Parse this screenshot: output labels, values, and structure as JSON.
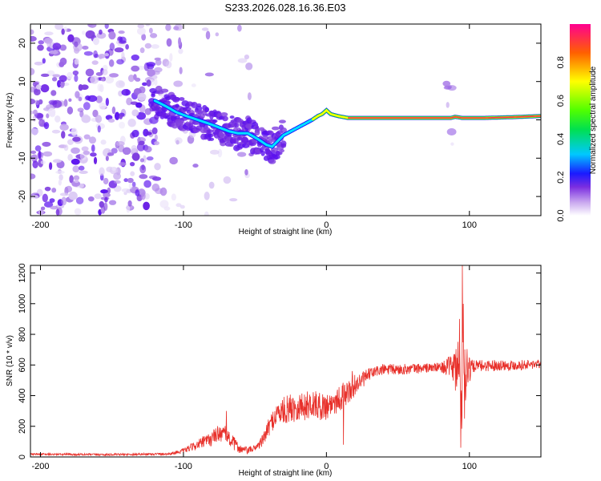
{
  "title": "S233.2026.028.16.36.E03",
  "chart_data": [
    {
      "type": "heatmap",
      "name": "spectrogram",
      "xlabel": "Height of straight line (km)",
      "ylabel": "Frequency (Hz)",
      "xlim": [
        -207,
        150
      ],
      "ylim": [
        -25,
        25
      ],
      "xticks": [
        "-200",
        "-100",
        "0",
        "100"
      ],
      "xtick_values": [
        -200,
        -100,
        0,
        100
      ],
      "yticks": [
        "-20",
        "-10",
        "0",
        "10",
        "20"
      ],
      "ytick_values": [
        -20,
        -10,
        0,
        10,
        20
      ],
      "ridge": {
        "x": [
          -120,
          -112,
          -105,
          -98,
          -90,
          -82,
          -75,
          -68,
          -62,
          -55,
          -48,
          -42,
          -38,
          -34,
          -30,
          -25,
          -20,
          -15,
          -10,
          -6,
          -3,
          0,
          3,
          8,
          15,
          25,
          40,
          60,
          80,
          87,
          90,
          95,
          110,
          130,
          150
        ],
        "y": [
          5,
          3.5,
          2,
          1,
          0,
          -1,
          -2,
          -3,
          -3.5,
          -3.5,
          -5,
          -6.5,
          -7,
          -5.5,
          -4,
          -3,
          -2,
          -1,
          0,
          1,
          1.5,
          2.5,
          1.5,
          1,
          0.5,
          0.5,
          0.5,
          0.5,
          0.5,
          0.5,
          0.8,
          0.5,
          0.5,
          0.7,
          1.0
        ]
      },
      "colorbar": {
        "label": "Normalized spectral amplitude",
        "ticks": [
          "0.0",
          "0.2",
          "0.4",
          "0.6",
          "0.8"
        ],
        "tick_values": [
          0.0,
          0.2,
          0.4,
          0.6,
          0.8
        ],
        "range": [
          0,
          1
        ]
      }
    },
    {
      "type": "line",
      "name": "snr",
      "xlabel": "Height of straight line (km)",
      "ylabel": "SNR (10 * v/v)",
      "xlim": [
        -207,
        150
      ],
      "ylim": [
        0,
        1250
      ],
      "xticks": [
        "-200",
        "-100",
        "0",
        "100"
      ],
      "xtick_values": [
        -200,
        -100,
        0,
        100
      ],
      "yticks": [
        "0",
        "200",
        "400",
        "600",
        "800",
        "1000",
        "1200"
      ],
      "ytick_values": [
        0,
        200,
        400,
        600,
        800,
        1000,
        1200
      ],
      "color": "#e8302a",
      "envelope": {
        "x": [
          -207,
          -150,
          -110,
          -100,
          -90,
          -80,
          -75,
          -70,
          -65,
          -60,
          -55,
          -50,
          -45,
          -40,
          -35,
          -30,
          -25,
          -20,
          -15,
          -10,
          -5,
          0,
          5,
          10,
          15,
          20,
          25,
          30,
          35,
          40,
          50,
          60,
          70,
          80,
          88,
          92,
          95,
          98,
          102,
          110,
          120,
          130,
          140,
          150
        ],
        "y": [
          18,
          15,
          20,
          40,
          80,
          120,
          160,
          140,
          90,
          50,
          40,
          60,
          100,
          200,
          280,
          300,
          320,
          330,
          330,
          350,
          330,
          330,
          360,
          390,
          420,
          470,
          500,
          540,
          560,
          570,
          570,
          575,
          580,
          585,
          590,
          560,
          600,
          590,
          590,
          595,
          600,
          598,
          602,
          605
        ]
      },
      "noise_amplitude": {
        "x": [
          -207,
          -110,
          -100,
          -80,
          -70,
          -60,
          -50,
          -40,
          -30,
          -20,
          -10,
          0,
          10,
          20,
          30,
          80,
          88,
          92,
          94,
          96,
          98,
          102,
          150
        ],
        "y": [
          6,
          8,
          15,
          50,
          60,
          30,
          20,
          60,
          90,
          100,
          90,
          90,
          90,
          70,
          40,
          30,
          80,
          250,
          500,
          400,
          200,
          40,
          30
        ]
      },
      "spikes": [
        {
          "x": 95.0,
          "y": 1250
        },
        {
          "x": 94.0,
          "y": 60
        },
        {
          "x": 93.0,
          "y": 900
        },
        {
          "x": 96.5,
          "y": 250
        },
        {
          "x": -70,
          "y": 300
        },
        {
          "x": 12,
          "y": 80
        },
        {
          "x": 18,
          "y": 560
        }
      ]
    }
  ]
}
